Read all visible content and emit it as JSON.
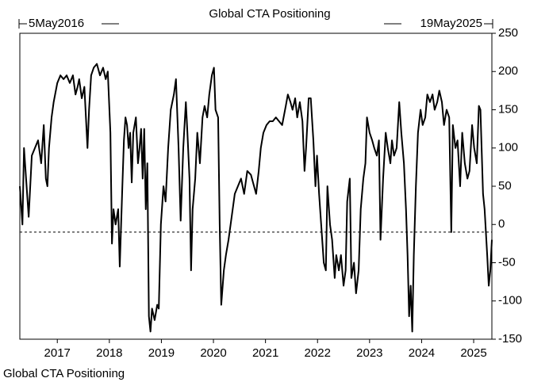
{
  "chart_data": {
    "type": "line",
    "title": "Global CTA Positioning",
    "start_label": "5May2016",
    "end_label": "19May2025",
    "x": [
      2016.28,
      2016.33,
      2016.36,
      2016.4,
      2016.45,
      2016.51,
      2016.57,
      2016.63,
      2016.69,
      2016.74,
      2016.78,
      2016.81,
      2016.84,
      2016.89,
      2016.93,
      2017.0,
      2017.06,
      2017.12,
      2017.18,
      2017.24,
      2017.3,
      2017.35,
      2017.39,
      2017.42,
      2017.47,
      2017.52,
      2017.55,
      2017.58,
      2017.61,
      2017.65,
      2017.7,
      2017.76,
      2017.82,
      2017.88,
      2017.93,
      2017.97,
      2018.02,
      2018.05,
      2018.08,
      2018.12,
      2018.17,
      2018.2,
      2018.25,
      2018.28,
      2018.31,
      2018.34,
      2018.37,
      2018.4,
      2018.43,
      2018.46,
      2018.51,
      2018.55,
      2018.58,
      2018.61,
      2018.64,
      2018.67,
      2018.7,
      2018.73,
      2018.76,
      2018.79,
      2018.82,
      2018.87,
      2018.92,
      2018.95,
      2018.99,
      2019.04,
      2019.08,
      2019.13,
      2019.18,
      2019.24,
      2019.28,
      2019.33,
      2019.37,
      2019.42,
      2019.47,
      2019.5,
      2019.54,
      2019.57,
      2019.6,
      2019.65,
      2019.69,
      2019.74,
      2019.79,
      2019.83,
      2019.88,
      2019.92,
      2019.97,
      2020.01,
      2020.04,
      2020.09,
      2020.12,
      2020.15,
      2020.2,
      2020.24,
      2020.29,
      2020.35,
      2020.41,
      2020.47,
      2020.53,
      2020.59,
      2020.65,
      2020.72,
      2020.78,
      2020.82,
      2020.87,
      2020.91,
      2020.96,
      2021.02,
      2021.08,
      2021.14,
      2021.2,
      2021.26,
      2021.32,
      2021.39,
      2021.43,
      2021.48,
      2021.52,
      2021.57,
      2021.61,
      2021.66,
      2021.71,
      2021.75,
      2021.78,
      2021.83,
      2021.87,
      2021.92,
      2021.96,
      2021.99,
      2022.03,
      2022.07,
      2022.12,
      2022.16,
      2022.19,
      2022.24,
      2022.28,
      2022.33,
      2022.36,
      2022.41,
      2022.45,
      2022.5,
      2022.54,
      2022.57,
      2022.62,
      2022.65,
      2022.7,
      2022.74,
      2022.79,
      2022.83,
      2022.88,
      2022.92,
      2022.95,
      2023.0,
      2023.05,
      2023.09,
      2023.14,
      2023.18,
      2023.21,
      2023.26,
      2023.31,
      2023.35,
      2023.4,
      2023.43,
      2023.47,
      2023.52,
      2023.57,
      2023.61,
      2023.66,
      2023.7,
      2023.73,
      2023.76,
      2023.79,
      2023.82,
      2023.85,
      2023.89,
      2023.93,
      2023.98,
      2024.02,
      2024.07,
      2024.11,
      2024.16,
      2024.21,
      2024.25,
      2024.3,
      2024.34,
      2024.39,
      2024.43,
      2024.48,
      2024.53,
      2024.57,
      2024.6,
      2024.65,
      2024.69,
      2024.74,
      2024.78,
      2024.83,
      2024.88,
      2024.92,
      2024.97,
      2025.01,
      2025.06,
      2025.1,
      2025.13,
      2025.18,
      2025.21,
      2025.26,
      2025.29,
      2025.32,
      2025.35
    ],
    "series": [
      {
        "name": "Global CTA Positioning",
        "color": "#000000",
        "values": [
          50,
          0,
          100,
          60,
          10,
          90,
          100,
          110,
          80,
          130,
          60,
          50,
          100,
          140,
          160,
          185,
          195,
          190,
          195,
          185,
          195,
          170,
          180,
          190,
          165,
          180,
          140,
          100,
          150,
          195,
          205,
          210,
          195,
          205,
          190,
          200,
          120,
          -25,
          20,
          0,
          20,
          -55,
          50,
          110,
          140,
          130,
          100,
          120,
          55,
          120,
          140,
          80,
          100,
          125,
          60,
          125,
          20,
          80,
          -120,
          -140,
          -110,
          -125,
          -105,
          -110,
          0,
          50,
          30,
          100,
          150,
          170,
          190,
          100,
          5,
          100,
          160,
          120,
          60,
          -60,
          20,
          60,
          120,
          80,
          140,
          155,
          140,
          170,
          195,
          205,
          150,
          140,
          0,
          -105,
          -60,
          -40,
          -20,
          10,
          40,
          50,
          60,
          40,
          70,
          65,
          50,
          40,
          70,
          100,
          120,
          130,
          135,
          135,
          140,
          135,
          130,
          155,
          170,
          160,
          150,
          165,
          140,
          160,
          135,
          70,
          100,
          165,
          165,
          110,
          50,
          90,
          40,
          0,
          -50,
          -60,
          50,
          0,
          -20,
          -70,
          -40,
          -60,
          -40,
          -80,
          -60,
          30,
          60,
          -70,
          -50,
          -90,
          -60,
          20,
          60,
          80,
          140,
          120,
          110,
          100,
          90,
          110,
          -20,
          60,
          120,
          100,
          80,
          110,
          90,
          100,
          160,
          120,
          80,
          20,
          -40,
          -120,
          -80,
          -140,
          -40,
          50,
          120,
          150,
          130,
          140,
          170,
          160,
          170,
          150,
          160,
          175,
          160,
          130,
          150,
          140,
          -10,
          130,
          100,
          110,
          50,
          120,
          80,
          60,
          70,
          130,
          100,
          80,
          155,
          150,
          40,
          20,
          -40,
          -80,
          -60,
          -20
        ]
      }
    ],
    "reference_line": -10,
    "xlim": [
      2016.28,
      2025.35
    ],
    "xticks": [
      2017,
      2018,
      2019,
      2020,
      2021,
      2022,
      2023,
      2024,
      2025
    ],
    "ylim": [
      -150,
      250
    ],
    "yticks": [
      -150,
      -100,
      -50,
      0,
      50,
      100,
      150,
      200,
      250
    ]
  }
}
